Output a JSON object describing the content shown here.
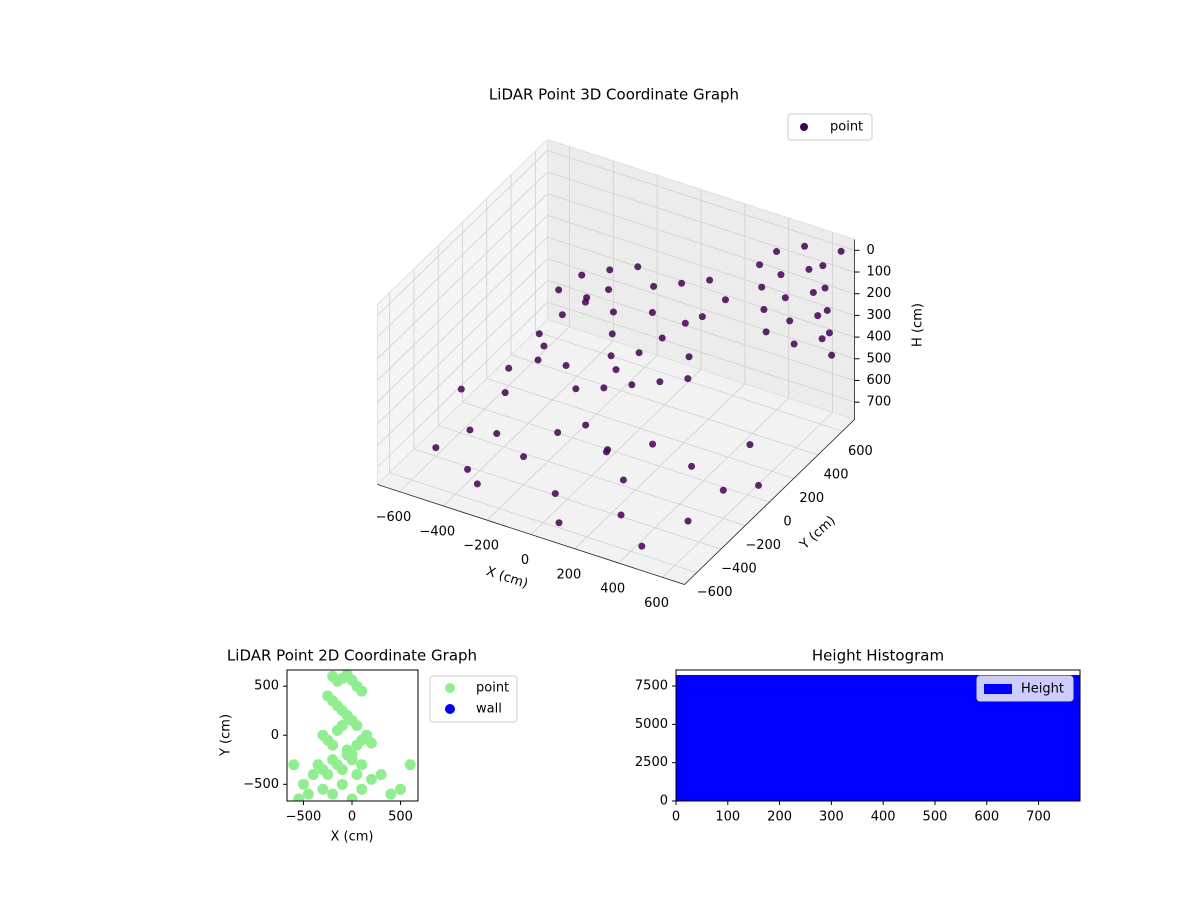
{
  "chart_data": [
    {
      "type": "scatter3d",
      "title": "LiDAR Point 3D Coordinate Graph",
      "x_label": "X (cm)",
      "y_label": "Y (cm)",
      "z_label": "H (cm)",
      "xlim": [
        -700,
        700
      ],
      "ylim": [
        -700,
        700
      ],
      "zlim": [
        780,
        -50
      ],
      "xticks": [
        {
          "value": -600,
          "label": "−600"
        },
        {
          "value": -400,
          "label": "−400"
        },
        {
          "value": -200,
          "label": "−200"
        },
        0,
        200,
        400,
        600
      ],
      "yticks": [
        {
          "value": -600,
          "label": "−600"
        },
        {
          "value": -400,
          "label": "−400"
        },
        {
          "value": -200,
          "label": "−200"
        },
        0,
        200,
        400,
        600
      ],
      "zticks": [
        0,
        100,
        200,
        300,
        400,
        500,
        600,
        700
      ],
      "grid": true,
      "legend": "upper right",
      "series": [
        {
          "name": "point",
          "color": "#440154",
          "x": [
            -300,
            -250,
            -200,
            -150,
            -100,
            -50,
            0,
            50,
            100,
            150,
            200,
            -350,
            -300,
            -200,
            -100,
            0,
            100,
            200,
            300,
            250,
            -400,
            -350,
            -250,
            -150,
            -50,
            50,
            150,
            250,
            -300,
            0,
            400,
            420,
            440,
            460,
            480,
            500,
            520,
            540,
            560,
            580,
            600,
            610,
            620,
            630,
            640,
            350,
            360,
            370,
            380,
            650,
            -650,
            -600,
            -500,
            -400,
            -300,
            -200,
            0,
            100,
            200,
            300,
            450,
            550,
            600,
            650,
            500,
            400,
            -550,
            -450,
            -350,
            100,
            250,
            -100,
            0,
            150,
            -600
          ],
          "y": [
            100,
            200,
            300,
            250,
            150,
            50,
            0,
            100,
            200,
            300,
            350,
            0,
            -100,
            -50,
            -150,
            -100,
            -50,
            0,
            50,
            150,
            250,
            350,
            400,
            450,
            400,
            450,
            500,
            450,
            300,
            300,
            600,
            600,
            600,
            600,
            600,
            650,
            650,
            650,
            650,
            650,
            620,
            620,
            620,
            620,
            620,
            550,
            550,
            550,
            550,
            680,
            -100,
            200,
            -300,
            -500,
            -600,
            -400,
            -500,
            -650,
            -300,
            -500,
            -600,
            -400,
            -200,
            0,
            200,
            -100,
            400,
            -100,
            -350,
            -250,
            -150,
            -300,
            -250,
            -350,
            -400
          ],
          "z": [
            300,
            280,
            260,
            320,
            350,
            380,
            400,
            360,
            330,
            300,
            280,
            350,
            400,
            420,
            440,
            430,
            410,
            390,
            370,
            340,
            300,
            270,
            240,
            220,
            250,
            230,
            210,
            240,
            330,
            300,
            50,
            150,
            250,
            350,
            450,
            20,
            120,
            220,
            320,
            420,
            60,
            160,
            260,
            360,
            460,
            100,
            200,
            300,
            400,
            10,
            650,
            700,
            680,
            720,
            700,
            650,
            700,
            720,
            680,
            700,
            740,
            700,
            650,
            720,
            690,
            660,
            690,
            600,
            620,
            600,
            580,
            560,
            520,
            540,
            740
          ]
        }
      ]
    },
    {
      "type": "scatter",
      "title": "LiDAR Point 2D Coordinate Graph",
      "x_label": "X (cm)",
      "y_label": "Y (cm)",
      "xlim": [
        -670,
        680
      ],
      "ylim": [
        -670,
        665
      ],
      "xticks": [
        {
          "value": -500,
          "label": "−500"
        },
        0,
        500
      ],
      "yticks": [
        {
          "value": -500,
          "label": "−500"
        },
        0,
        500
      ],
      "legend": "outside right",
      "series": [
        {
          "name": "point",
          "color": "#90ee90",
          "x": [
            -200,
            -150,
            -100,
            -50,
            0,
            50,
            100,
            -250,
            -200,
            -150,
            -100,
            -50,
            0,
            50,
            -300,
            -250,
            -200,
            -150,
            -100,
            -50,
            0,
            50,
            100,
            150,
            200,
            -350,
            -300,
            -250,
            -200,
            -150,
            -100,
            -50,
            0,
            50,
            100,
            -550,
            -450,
            -600,
            -500,
            -400,
            -300,
            -200,
            -100,
            0,
            100,
            200,
            300,
            400,
            500,
            600
          ],
          "y": [
            600,
            550,
            580,
            620,
            560,
            500,
            450,
            400,
            350,
            300,
            250,
            200,
            150,
            100,
            0,
            -50,
            -100,
            50,
            100,
            -150,
            -200,
            -100,
            -50,
            0,
            -80,
            -300,
            -350,
            -400,
            -250,
            -300,
            -350,
            -200,
            -250,
            -400,
            -300,
            -650,
            -600,
            -300,
            -500,
            -400,
            -550,
            -600,
            -500,
            -650,
            -550,
            -450,
            -400,
            -600,
            -550,
            -300
          ]
        },
        {
          "name": "wall",
          "color": "#0000ff",
          "x": [],
          "y": []
        }
      ]
    },
    {
      "type": "histogram",
      "title": "Height Histogram",
      "xlim": [
        0,
        780
      ],
      "ylim": [
        0,
        8545
      ],
      "xticks": [
        0,
        100,
        200,
        300,
        400,
        500,
        600,
        700
      ],
      "yticks": [
        0,
        2500,
        5000,
        7500
      ],
      "legend": "upper right",
      "series": [
        {
          "name": "Height",
          "color": "#0000ff",
          "bins": [
            0,
            78,
            156,
            234,
            312,
            390,
            468,
            546,
            624,
            702,
            780
          ],
          "counts": [
            8220,
            8220,
            8220,
            8220,
            8220,
            8220,
            8220,
            8220,
            8220,
            8220
          ]
        }
      ]
    }
  ]
}
